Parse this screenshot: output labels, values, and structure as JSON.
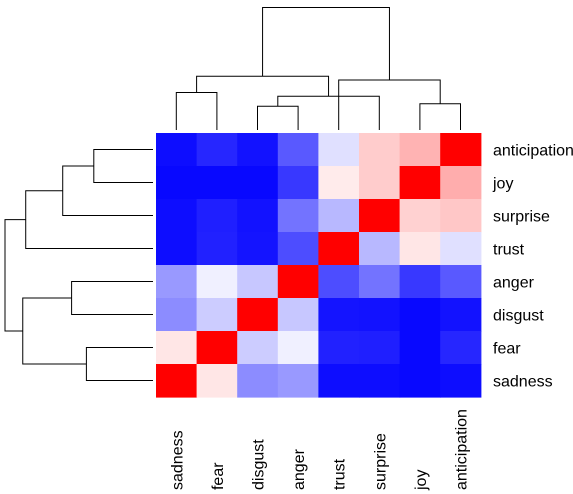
{
  "chart_data": {
    "type": "heatmap",
    "title": "",
    "xlabel": "",
    "ylabel": "",
    "color_scale": {
      "low": "#0000ff",
      "mid": "#ffffff",
      "high": "#ff0000",
      "range": [
        -1,
        1
      ]
    },
    "columns": [
      "sadness",
      "fear",
      "disgust",
      "anger",
      "trust",
      "surprise",
      "joy",
      "anticipation"
    ],
    "rows": [
      "anticipation",
      "joy",
      "surprise",
      "trust",
      "anger",
      "disgust",
      "fear",
      "sadness"
    ],
    "values": [
      [
        -0.95,
        -0.85,
        -0.93,
        -0.65,
        -0.12,
        0.2,
        0.3,
        1.0
      ],
      [
        -0.97,
        -0.97,
        -0.97,
        -0.78,
        0.08,
        0.2,
        1.0,
        0.32
      ],
      [
        -0.95,
        -0.88,
        -0.93,
        -0.55,
        -0.28,
        1.0,
        0.18,
        0.22
      ],
      [
        -0.95,
        -0.87,
        -0.92,
        -0.7,
        1.0,
        -0.28,
        0.1,
        -0.12
      ],
      [
        -0.4,
        -0.06,
        -0.22,
        1.0,
        -0.7,
        -0.55,
        -0.78,
        -0.65
      ],
      [
        -0.45,
        -0.2,
        1.0,
        -0.22,
        -0.92,
        -0.93,
        -0.97,
        -0.93
      ],
      [
        0.1,
        1.0,
        -0.2,
        -0.06,
        -0.87,
        -0.88,
        -0.97,
        -0.85
      ],
      [
        1.0,
        0.1,
        -0.45,
        -0.4,
        -0.95,
        -0.95,
        -0.97,
        -0.95
      ]
    ],
    "column_dendrogram": [
      [
        2,
        3,
        0.19
      ],
      [
        6,
        7,
        0.21
      ],
      [
        5,
        8,
        0.27
      ],
      [
        0,
        1,
        0.3
      ],
      [
        4,
        9,
        0.4
      ],
      [
        10,
        11,
        0.43
      ],
      [
        12,
        13,
        0.98
      ]
    ],
    "row_dendrogram": [
      [
        0,
        1,
        0.4
      ],
      [
        6,
        7,
        0.45
      ],
      [
        4,
        5,
        0.55
      ],
      [
        2,
        8,
        0.61
      ],
      [
        3,
        11,
        0.86
      ],
      [
        9,
        10,
        0.88
      ],
      [
        12,
        13,
        1.0
      ]
    ]
  }
}
